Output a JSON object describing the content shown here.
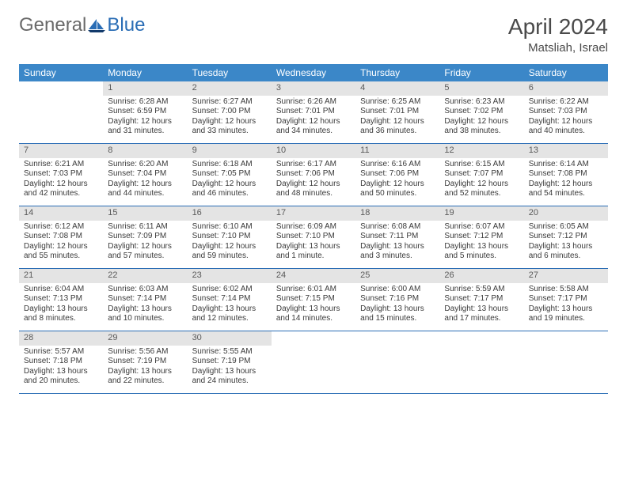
{
  "brand": {
    "general": "General",
    "blue": "Blue"
  },
  "title": "April 2024",
  "location": "Matsliah, Israel",
  "colors": {
    "header_bg": "#3b87c8",
    "header_text": "#ffffff",
    "daynum_bg": "#e4e4e4",
    "row_border": "#2a6db5",
    "body_text": "#3a3a3a",
    "title_text": "#4a4a4a"
  },
  "days_of_week": [
    "Sunday",
    "Monday",
    "Tuesday",
    "Wednesday",
    "Thursday",
    "Friday",
    "Saturday"
  ],
  "weeks": [
    [
      {
        "n": "",
        "empty": true
      },
      {
        "n": "1",
        "sr": "Sunrise: 6:28 AM",
        "ss": "Sunset: 6:59 PM",
        "d1": "Daylight: 12 hours",
        "d2": "and 31 minutes."
      },
      {
        "n": "2",
        "sr": "Sunrise: 6:27 AM",
        "ss": "Sunset: 7:00 PM",
        "d1": "Daylight: 12 hours",
        "d2": "and 33 minutes."
      },
      {
        "n": "3",
        "sr": "Sunrise: 6:26 AM",
        "ss": "Sunset: 7:01 PM",
        "d1": "Daylight: 12 hours",
        "d2": "and 34 minutes."
      },
      {
        "n": "4",
        "sr": "Sunrise: 6:25 AM",
        "ss": "Sunset: 7:01 PM",
        "d1": "Daylight: 12 hours",
        "d2": "and 36 minutes."
      },
      {
        "n": "5",
        "sr": "Sunrise: 6:23 AM",
        "ss": "Sunset: 7:02 PM",
        "d1": "Daylight: 12 hours",
        "d2": "and 38 minutes."
      },
      {
        "n": "6",
        "sr": "Sunrise: 6:22 AM",
        "ss": "Sunset: 7:03 PM",
        "d1": "Daylight: 12 hours",
        "d2": "and 40 minutes."
      }
    ],
    [
      {
        "n": "7",
        "sr": "Sunrise: 6:21 AM",
        "ss": "Sunset: 7:03 PM",
        "d1": "Daylight: 12 hours",
        "d2": "and 42 minutes."
      },
      {
        "n": "8",
        "sr": "Sunrise: 6:20 AM",
        "ss": "Sunset: 7:04 PM",
        "d1": "Daylight: 12 hours",
        "d2": "and 44 minutes."
      },
      {
        "n": "9",
        "sr": "Sunrise: 6:18 AM",
        "ss": "Sunset: 7:05 PM",
        "d1": "Daylight: 12 hours",
        "d2": "and 46 minutes."
      },
      {
        "n": "10",
        "sr": "Sunrise: 6:17 AM",
        "ss": "Sunset: 7:06 PM",
        "d1": "Daylight: 12 hours",
        "d2": "and 48 minutes."
      },
      {
        "n": "11",
        "sr": "Sunrise: 6:16 AM",
        "ss": "Sunset: 7:06 PM",
        "d1": "Daylight: 12 hours",
        "d2": "and 50 minutes."
      },
      {
        "n": "12",
        "sr": "Sunrise: 6:15 AM",
        "ss": "Sunset: 7:07 PM",
        "d1": "Daylight: 12 hours",
        "d2": "and 52 minutes."
      },
      {
        "n": "13",
        "sr": "Sunrise: 6:14 AM",
        "ss": "Sunset: 7:08 PM",
        "d1": "Daylight: 12 hours",
        "d2": "and 54 minutes."
      }
    ],
    [
      {
        "n": "14",
        "sr": "Sunrise: 6:12 AM",
        "ss": "Sunset: 7:08 PM",
        "d1": "Daylight: 12 hours",
        "d2": "and 55 minutes."
      },
      {
        "n": "15",
        "sr": "Sunrise: 6:11 AM",
        "ss": "Sunset: 7:09 PM",
        "d1": "Daylight: 12 hours",
        "d2": "and 57 minutes."
      },
      {
        "n": "16",
        "sr": "Sunrise: 6:10 AM",
        "ss": "Sunset: 7:10 PM",
        "d1": "Daylight: 12 hours",
        "d2": "and 59 minutes."
      },
      {
        "n": "17",
        "sr": "Sunrise: 6:09 AM",
        "ss": "Sunset: 7:10 PM",
        "d1": "Daylight: 13 hours",
        "d2": "and 1 minute."
      },
      {
        "n": "18",
        "sr": "Sunrise: 6:08 AM",
        "ss": "Sunset: 7:11 PM",
        "d1": "Daylight: 13 hours",
        "d2": "and 3 minutes."
      },
      {
        "n": "19",
        "sr": "Sunrise: 6:07 AM",
        "ss": "Sunset: 7:12 PM",
        "d1": "Daylight: 13 hours",
        "d2": "and 5 minutes."
      },
      {
        "n": "20",
        "sr": "Sunrise: 6:05 AM",
        "ss": "Sunset: 7:12 PM",
        "d1": "Daylight: 13 hours",
        "d2": "and 6 minutes."
      }
    ],
    [
      {
        "n": "21",
        "sr": "Sunrise: 6:04 AM",
        "ss": "Sunset: 7:13 PM",
        "d1": "Daylight: 13 hours",
        "d2": "and 8 minutes."
      },
      {
        "n": "22",
        "sr": "Sunrise: 6:03 AM",
        "ss": "Sunset: 7:14 PM",
        "d1": "Daylight: 13 hours",
        "d2": "and 10 minutes."
      },
      {
        "n": "23",
        "sr": "Sunrise: 6:02 AM",
        "ss": "Sunset: 7:14 PM",
        "d1": "Daylight: 13 hours",
        "d2": "and 12 minutes."
      },
      {
        "n": "24",
        "sr": "Sunrise: 6:01 AM",
        "ss": "Sunset: 7:15 PM",
        "d1": "Daylight: 13 hours",
        "d2": "and 14 minutes."
      },
      {
        "n": "25",
        "sr": "Sunrise: 6:00 AM",
        "ss": "Sunset: 7:16 PM",
        "d1": "Daylight: 13 hours",
        "d2": "and 15 minutes."
      },
      {
        "n": "26",
        "sr": "Sunrise: 5:59 AM",
        "ss": "Sunset: 7:17 PM",
        "d1": "Daylight: 13 hours",
        "d2": "and 17 minutes."
      },
      {
        "n": "27",
        "sr": "Sunrise: 5:58 AM",
        "ss": "Sunset: 7:17 PM",
        "d1": "Daylight: 13 hours",
        "d2": "and 19 minutes."
      }
    ],
    [
      {
        "n": "28",
        "sr": "Sunrise: 5:57 AM",
        "ss": "Sunset: 7:18 PM",
        "d1": "Daylight: 13 hours",
        "d2": "and 20 minutes."
      },
      {
        "n": "29",
        "sr": "Sunrise: 5:56 AM",
        "ss": "Sunset: 7:19 PM",
        "d1": "Daylight: 13 hours",
        "d2": "and 22 minutes."
      },
      {
        "n": "30",
        "sr": "Sunrise: 5:55 AM",
        "ss": "Sunset: 7:19 PM",
        "d1": "Daylight: 13 hours",
        "d2": "and 24 minutes."
      },
      {
        "n": "",
        "empty": true
      },
      {
        "n": "",
        "empty": true
      },
      {
        "n": "",
        "empty": true
      },
      {
        "n": "",
        "empty": true
      }
    ]
  ]
}
